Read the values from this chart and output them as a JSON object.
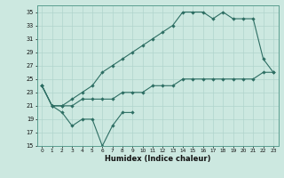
{
  "xlabel": "Humidex (Indice chaleur)",
  "bg_color": "#cce8e0",
  "line_color": "#2d6e63",
  "grid_color": "#b0d4cc",
  "xlim": [
    -0.5,
    23.5
  ],
  "ylim": [
    15,
    36
  ],
  "xticks": [
    0,
    1,
    2,
    3,
    4,
    5,
    6,
    7,
    8,
    9,
    10,
    11,
    12,
    13,
    14,
    15,
    16,
    17,
    18,
    19,
    20,
    21,
    22,
    23
  ],
  "yticks": [
    15,
    17,
    19,
    21,
    23,
    25,
    27,
    29,
    31,
    33,
    35
  ],
  "line_zigzag_x": [
    0,
    1,
    2,
    3,
    4,
    5,
    6,
    7,
    8,
    9
  ],
  "line_zigzag_y": [
    24,
    21,
    20,
    18,
    19,
    19,
    15,
    18,
    20,
    20
  ],
  "line_straight_x": [
    0,
    1,
    2,
    3,
    4,
    5,
    6,
    7,
    8,
    9,
    10,
    11,
    12,
    13,
    14,
    15,
    16,
    17,
    18,
    19,
    20,
    21,
    22,
    23
  ],
  "line_straight_y": [
    24,
    21,
    21,
    21,
    22,
    22,
    22,
    22,
    23,
    23,
    23,
    24,
    24,
    24,
    25,
    25,
    25,
    25,
    25,
    25,
    25,
    25,
    26,
    26
  ],
  "line_upper_x": [
    0,
    1,
    2,
    3,
    4,
    5,
    6,
    7,
    8,
    9,
    10,
    11,
    12,
    13,
    14,
    15,
    16,
    17,
    18,
    19,
    20,
    21,
    22,
    23
  ],
  "line_upper_y": [
    24,
    21,
    21,
    22,
    23,
    24,
    26,
    27,
    28,
    29,
    30,
    31,
    32,
    33,
    35,
    35,
    35,
    34,
    35,
    34,
    34,
    34,
    28,
    26
  ]
}
